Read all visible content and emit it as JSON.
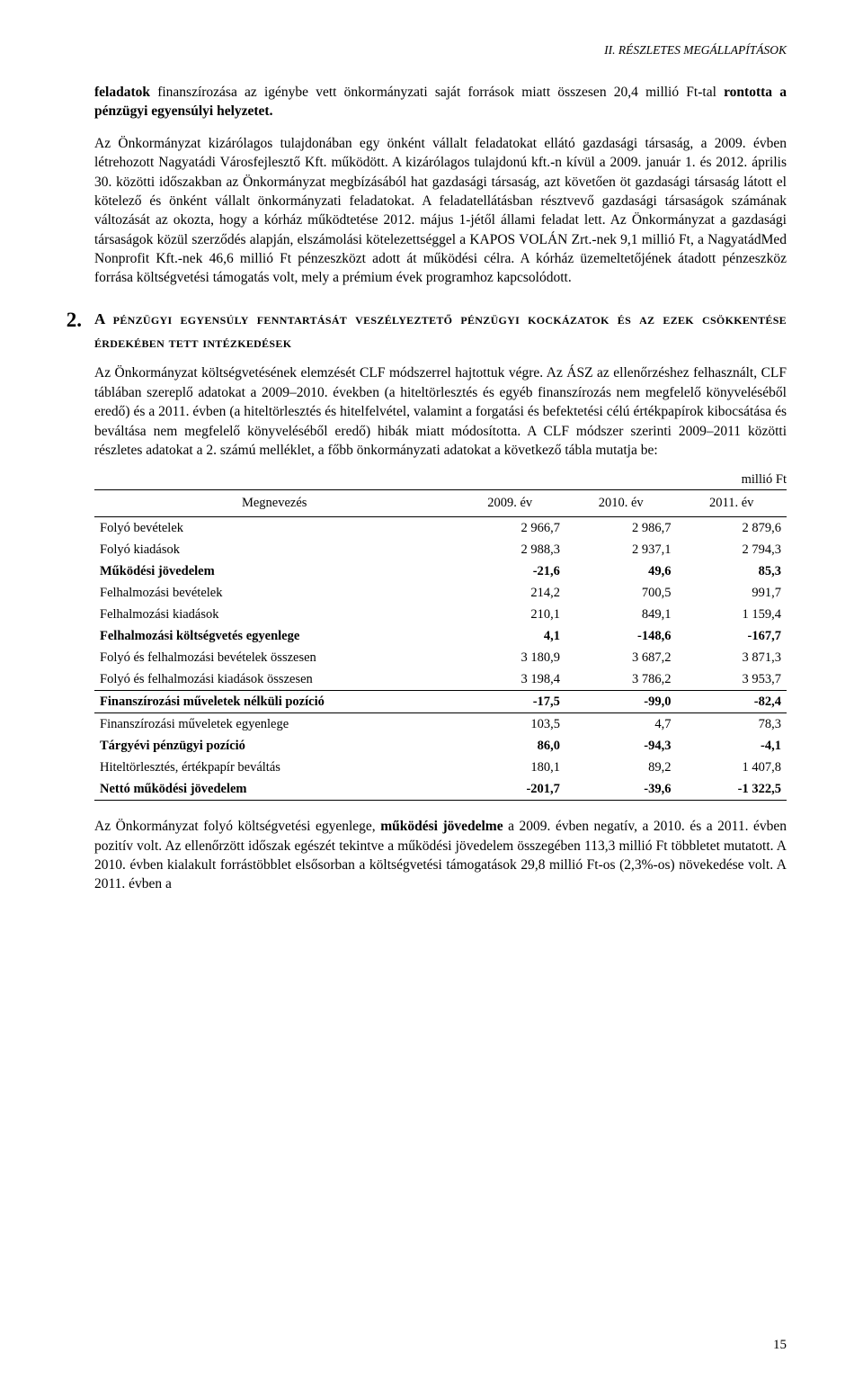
{
  "header": "II. RÉSZLETES MEGÁLLAPÍTÁSOK",
  "para1_a": "feladatok",
  "para1_b": " finanszírozása az igénybe vett önkormányzati saját források miatt összesen 20,4 millió Ft-tal ",
  "para1_c": "rontotta a pénzügyi egyensúlyi helyzetet.",
  "para2": "Az Önkormányzat kizárólagos tulajdonában egy önként vállalt feladatokat ellátó gazdasági társaság, a 2009. évben létrehozott Nagyatádi Városfejlesztő Kft. működött. A kizárólagos tulajdonú kft.-n kívül a 2009. január 1. és 2012. április 30. közötti időszakban az Önkormányzat megbízásából hat gazdasági társaság, azt követően öt gazdasági társaság látott el kötelező és önként vállalt önkormányzati feladatokat. A feladatellátásban résztvevő gazdasági társaságok számának változását az okozta, hogy a kórház működtetése 2012. május 1-jétől állami feladat lett. Az Önkormányzat a gazdasági társaságok közül szerződés alapján, elszámolási kötelezettséggel a KAPOS VOLÁN Zrt.-nek 9,1 millió Ft, a NagyatádMed Nonprofit Kft.-nek 46,6 millió Ft pénzeszközt adott át működési célra. A kórház üzemeltetőjének átadott pénzeszköz forrása költségvetési támogatás volt, mely a prémium évek programhoz kapcsolódott.",
  "section": {
    "num": "2.",
    "title": "A pénzügyi egyensúly fenntartását veszélyeztető pénzügyi kockázatok és az ezek csökkentése érdekében tett intézkedések"
  },
  "para3": "Az Önkormányzat költségvetésének elemzését CLF módszerrel hajtottuk végre. Az ÁSZ az ellenőrzéshez felhasznált, CLF táblában szereplő adatokat a 2009–2010. években (a hiteltörlesztés és egyéb finanszírozás nem megfelelő könyveléséből eredő) és a 2011. évben (a hiteltörlesztés és hitelfelvétel, valamint a forgatási és befektetési célú értékpapírok kibocsátása és beváltása nem megfelelő könyveléséből eredő) hibák miatt módosította. A CLF módszer szerinti 2009–2011 közötti részletes adatokat a 2. számú melléklet, a főbb önkormányzati adatokat a következő tábla mutatja be:",
  "table": {
    "unit": "millió Ft",
    "headers": [
      "Megnevezés",
      "2009. év",
      "2010. év",
      "2011. év"
    ],
    "rows": [
      {
        "label": "Folyó bevételek",
        "v": [
          "2 966,7",
          "2 986,7",
          "2 879,6"
        ],
        "bold": false,
        "border": false
      },
      {
        "label": "Folyó kiadások",
        "v": [
          "2 988,3",
          "2 937,1",
          "2 794,3"
        ],
        "bold": false,
        "border": false
      },
      {
        "label": "Működési jövedelem",
        "v": [
          "-21,6",
          "49,6",
          "85,3"
        ],
        "bold": true,
        "border": false
      },
      {
        "label": "Felhalmozási bevételek",
        "v": [
          "214,2",
          "700,5",
          "991,7"
        ],
        "bold": false,
        "border": false
      },
      {
        "label": "Felhalmozási  kiadások",
        "v": [
          "210,1",
          "849,1",
          "1 159,4"
        ],
        "bold": false,
        "border": false
      },
      {
        "label": "Felhalmozási költségvetés egyenlege",
        "v": [
          "4,1",
          "-148,6",
          "-167,7"
        ],
        "bold": true,
        "border": false
      },
      {
        "label": "Folyó és felhalmozási bevételek  összesen",
        "v": [
          "3 180,9",
          "3 687,2",
          "3 871,3"
        ],
        "bold": false,
        "border": false
      },
      {
        "label": "Folyó és felhalmozási kiadások összesen",
        "v": [
          "3 198,4",
          "3 786,2",
          "3 953,7"
        ],
        "bold": false,
        "border": true
      },
      {
        "label": "Finanszírozási műveletek nélküli pozíció",
        "v": [
          "-17,5",
          "-99,0",
          "-82,4"
        ],
        "bold": true,
        "border": true
      },
      {
        "label": "Finanszírozási műveletek egyenlege",
        "v": [
          "103,5",
          "4,7",
          "78,3"
        ],
        "bold": false,
        "border": false
      },
      {
        "label": "Tárgyévi pénzügyi pozíció",
        "v": [
          "86,0",
          "-94,3",
          "-4,1"
        ],
        "bold": true,
        "border": false
      },
      {
        "label": "Hiteltörlesztés, értékpapír beváltás",
        "v": [
          "180,1",
          "89,2",
          "1 407,8"
        ],
        "bold": false,
        "border": false
      },
      {
        "label": "Nettó működési jövedelem",
        "v": [
          "-201,7",
          "-39,6",
          "-1 322,5"
        ],
        "bold": true,
        "border": true
      }
    ]
  },
  "para4_a": "Az Önkormányzat folyó költségvetési egyenlege, ",
  "para4_b": "működési jövedelme",
  "para4_c": " a 2009. évben negatív, a 2010. és a 2011. évben pozitív volt. Az ellenőrzött időszak egészét tekintve a működési jövedelem összegében 113,3 millió Ft többletet mutatott. A 2010. évben kialakult forrástöbblet elsősorban a költségvetési támogatások 29,8 millió Ft-os (2,3%-os) növekedése volt. A 2011. évben a",
  "pageNum": "15"
}
